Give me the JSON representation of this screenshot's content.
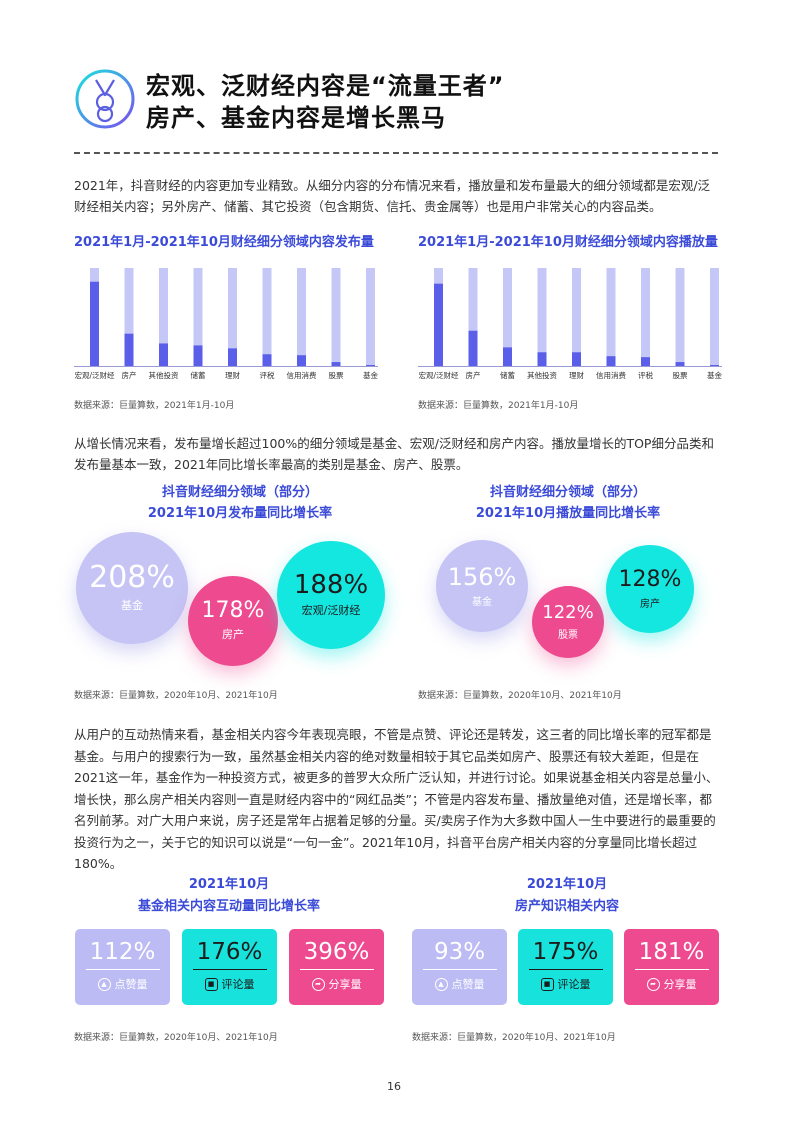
{
  "header": {
    "title_line1": "宏观、泛财经内容是“流量王者”",
    "title_line2": "房产、基金内容是增长黑马"
  },
  "paragraphs": {
    "p1": "2021年，抖音财经的内容更加专业精致。从细分内容的分布情况来看，播放量和发布量最大的细分领域都是宏观/泛财经相关内容；另外房产、储蓄、其它投资（包含期货、信托、贵金属等）也是用户非常关心的内容品类。",
    "p2": "从增长情况来看，发布量增长超过100%的细分领域是基金、宏观/泛财经和房产内容。播放量增长的TOP细分品类和发布量基本一致，2021年同比增长率最高的类别是基金、房产、股票。",
    "p3": "从用户的互动热情来看，基金相关内容今年表现亮眼，不管是点赞、评论还是转发，这三者的同比增长率的冠军都是基金。与用户的搜索行为一致，虽然基金相关内容的绝对数量相较于其它品类如房产、股票还有较大差距，但是在2021这一年，基金作为一种投资方式，被更多的普罗大众所广泛认知，并进行讨论。如果说基金相关内容是总量小、增长快，那么房产相关内容则一直是财经内容中的“网红品类”；不管是内容发布量、播放量绝对值，还是增长率，都名列前茅。对广大用户来说，房子还是常年占据着足够的分量。买/卖房子作为大多数中国人一生中要进行的最重要的投资行为之一，关于它的知识可以说是“一句一金”。2021年10月，抖音平台房产相关内容的分享量同比增长超过180%。"
  },
  "chart_data": [
    {
      "type": "bar",
      "title": "2021年1月-2021年10月财经细分领域内容发布量",
      "categories": [
        "宏观/泛财经",
        "房产",
        "其他投资",
        "储蓄",
        "理财",
        "评税",
        "信用消费",
        "股票",
        "基金"
      ],
      "values": [
        86,
        33,
        23,
        21,
        18,
        12,
        11,
        4,
        1
      ],
      "ylim": [
        0,
        100
      ],
      "colors": {
        "bar": "#5a5ee8",
        "track": "#c5c8f7"
      },
      "source": "数据来源：巨量算数，2021年1月-10月"
    },
    {
      "type": "bar",
      "title": "2021年1月-2021年10月财经细分领域内容播放量",
      "categories": [
        "宏观/泛财经",
        "房产",
        "储蓄",
        "其他投资",
        "理财",
        "信用消费",
        "评税",
        "股票",
        "基金"
      ],
      "values": [
        84,
        36,
        19,
        14,
        14,
        10,
        9,
        4,
        1
      ],
      "ylim": [
        0,
        100
      ],
      "colors": {
        "bar": "#5a5ee8",
        "track": "#c5c8f7"
      },
      "source": "数据来源：巨量算数，2021年1月-10月"
    }
  ],
  "bubbles_left": {
    "title1": "抖音财经细分领域（部分）",
    "title2": "2021年10月发布量同比增长率",
    "items": [
      {
        "value": "208%",
        "label": "基金"
      },
      {
        "value": "178%",
        "label": "房产"
      },
      {
        "value": "188%",
        "label": "宏观/泛财经"
      }
    ],
    "source": "数据来源：巨量算数，2020年10月、2021年10月"
  },
  "bubbles_right": {
    "title1": "抖音财经细分领域（部分）",
    "title2": "2021年10月播放量同比增长率",
    "items": [
      {
        "value": "156%",
        "label": "基金"
      },
      {
        "value": "122%",
        "label": "股票"
      },
      {
        "value": "128%",
        "label": "房产"
      }
    ],
    "source": "数据来源：巨量算数，2020年10月、2021年10月"
  },
  "cards_left": {
    "title1": "2021年10月",
    "title2": "基金相关内容互动量同比增长率",
    "items": [
      {
        "value": "112%",
        "label": "点赞量",
        "icon": "thumb-icon"
      },
      {
        "value": "176%",
        "label": "评论量",
        "icon": "comment-icon"
      },
      {
        "value": "396%",
        "label": "分享量",
        "icon": "share-icon"
      }
    ],
    "source": "数据来源：巨量算数，2020年10月、2021年10月"
  },
  "cards_right": {
    "title1": "2021年10月",
    "title2": "房产知识相关内容",
    "items": [
      {
        "value": "93%",
        "label": "点赞量",
        "icon": "thumb-icon"
      },
      {
        "value": "175%",
        "label": "评论量",
        "icon": "comment-icon"
      },
      {
        "value": "181%",
        "label": "分享量",
        "icon": "share-icon"
      }
    ],
    "source": "数据来源：巨量算数，2020年10月、2021年10月"
  },
  "page_number": "16",
  "colors": {
    "accent_blue": "#3b4bd8",
    "purple": "#c5c4f5",
    "pink": "#ee4a8f",
    "cyan": "#14e6e0"
  }
}
